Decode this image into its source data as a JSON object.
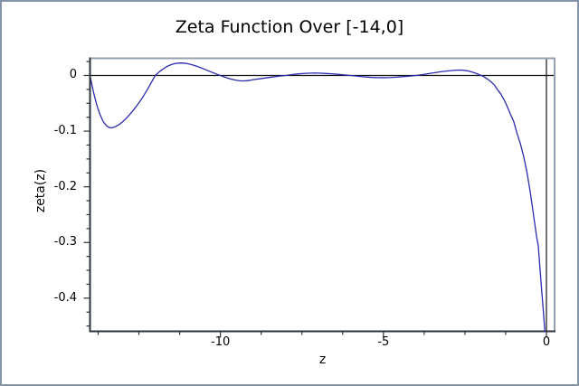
{
  "window": {
    "border_color": "#8495a9",
    "background_color": "#ffffff"
  },
  "chart_data": {
    "type": "line",
    "title": "Zeta Function Over [-14,0]",
    "xlabel": "z",
    "ylabel": "zeta(z)",
    "xlim": [
      -14.0,
      0.25
    ],
    "ylim": [
      -0.4595,
      0.0308
    ],
    "grid": false,
    "legend": "none",
    "axes_through_origin": true,
    "x_ticks": {
      "major": [
        -10,
        -5,
        0
      ],
      "labels": [
        "-10",
        "-5",
        "0"
      ],
      "minor_step": 1.25
    },
    "y_ticks": {
      "major": [
        0,
        -0.1,
        -0.2,
        -0.3,
        -0.4
      ],
      "labels": [
        "0",
        "-0.1",
        "-0.2",
        "-0.3",
        "-0.4"
      ],
      "minor_step": 0.025
    },
    "colors": {
      "curve": "#2b2bae",
      "zero_axis_lines": "#141414",
      "spine_dark": "#2d333d",
      "spine_light": "#94a1b1",
      "text": "#000000"
    },
    "series": [
      {
        "name": "zeta(z)",
        "color": "#2b2bae",
        "points": [
          [
            -14.0,
            0.0
          ],
          [
            -13.95,
            -0.0145
          ],
          [
            -13.9,
            -0.0283
          ],
          [
            -13.8,
            -0.0517
          ],
          [
            -13.7,
            -0.0693
          ],
          [
            -13.6,
            -0.0825
          ],
          [
            -13.5,
            -0.0902
          ],
          [
            -13.4,
            -0.0937
          ],
          [
            -13.35,
            -0.094
          ],
          [
            -13.3,
            -0.0936
          ],
          [
            -13.2,
            -0.0913
          ],
          [
            -13.1,
            -0.0878
          ],
          [
            -13.0,
            -0.0833
          ],
          [
            -12.9,
            -0.0777
          ],
          [
            -12.8,
            -0.0713
          ],
          [
            -12.7,
            -0.0645
          ],
          [
            -12.6,
            -0.057
          ],
          [
            -12.5,
            -0.0491
          ],
          [
            -12.4,
            -0.0408
          ],
          [
            -12.3,
            -0.031
          ],
          [
            -12.2,
            -0.021
          ],
          [
            -12.1,
            -0.0107
          ],
          [
            -12.0,
            0.0
          ],
          [
            -11.9,
            0.0052
          ],
          [
            -11.8,
            0.01
          ],
          [
            -11.7,
            0.014
          ],
          [
            -11.6,
            0.0172
          ],
          [
            -11.5,
            0.0196
          ],
          [
            -11.4,
            0.0213
          ],
          [
            -11.3,
            0.0222
          ],
          [
            -11.2,
            0.0224
          ],
          [
            -11.1,
            0.022
          ],
          [
            -11.0,
            0.0211
          ],
          [
            -10.9,
            0.0197
          ],
          [
            -10.8,
            0.018
          ],
          [
            -10.7,
            0.016
          ],
          [
            -10.6,
            0.0138
          ],
          [
            -10.5,
            0.0114
          ],
          [
            -10.4,
            0.009
          ],
          [
            -10.3,
            0.0066
          ],
          [
            -10.2,
            0.0043
          ],
          [
            -10.1,
            0.0021
          ],
          [
            -10.0,
            0.0
          ],
          [
            -9.9,
            -0.0022
          ],
          [
            -9.8,
            -0.0043
          ],
          [
            -9.7,
            -0.0061
          ],
          [
            -9.6,
            -0.0076
          ],
          [
            -9.5,
            -0.0088
          ],
          [
            -9.4,
            -0.0096
          ],
          [
            -9.3,
            -0.0098
          ],
          [
            -9.2,
            -0.0095
          ],
          [
            -9.1,
            -0.0087
          ],
          [
            -9.0,
            -0.0076
          ],
          [
            -8.8,
            -0.006
          ],
          [
            -8.6,
            -0.0044
          ],
          [
            -8.4,
            -0.0028
          ],
          [
            -8.2,
            -0.0013
          ],
          [
            -8.0,
            0.0
          ],
          [
            -7.8,
            0.0016
          ],
          [
            -7.6,
            0.0029
          ],
          [
            -7.4,
            0.0038
          ],
          [
            -7.2,
            0.0042
          ],
          [
            -7.1,
            0.0043
          ],
          [
            -7.0,
            0.0042
          ],
          [
            -6.8,
            0.0037
          ],
          [
            -6.6,
            0.003
          ],
          [
            -6.4,
            0.0021
          ],
          [
            -6.2,
            0.001
          ],
          [
            -6.0,
            0.0
          ],
          [
            -5.8,
            -0.0013
          ],
          [
            -5.6,
            -0.0025
          ],
          [
            -5.4,
            -0.0034
          ],
          [
            -5.2,
            -0.0039
          ],
          [
            -5.0,
            -0.004
          ],
          [
            -4.8,
            -0.0037
          ],
          [
            -4.6,
            -0.0031
          ],
          [
            -4.4,
            -0.0022
          ],
          [
            -4.2,
            -0.0012
          ],
          [
            -4.0,
            0.0
          ],
          [
            -3.8,
            0.0016
          ],
          [
            -3.6,
            0.0034
          ],
          [
            -3.4,
            0.0053
          ],
          [
            -3.2,
            0.007
          ],
          [
            -3.0,
            0.0083
          ],
          [
            -2.9,
            0.0089
          ],
          [
            -2.8,
            0.0093
          ],
          [
            -2.7,
            0.0097
          ],
          [
            -2.6,
            0.0096
          ],
          [
            -2.5,
            0.009
          ],
          [
            -2.4,
            0.008
          ],
          [
            -2.3,
            0.0064
          ],
          [
            -2.2,
            0.0046
          ],
          [
            -2.1,
            0.0024
          ],
          [
            -2.0,
            0.0
          ],
          [
            -1.9,
            -0.003
          ],
          [
            -1.8,
            -0.0068
          ],
          [
            -1.7,
            -0.0114
          ],
          [
            -1.6,
            -0.017
          ],
          [
            -1.5,
            -0.0255
          ],
          [
            -1.4,
            -0.0332
          ],
          [
            -1.3,
            -0.0435
          ],
          [
            -1.2,
            -0.056
          ],
          [
            -1.1,
            -0.07
          ],
          [
            -1.0,
            -0.0833
          ],
          [
            -0.9,
            -0.1043
          ],
          [
            -0.8,
            -0.1222
          ],
          [
            -0.7,
            -0.145
          ],
          [
            -0.6,
            -0.173
          ],
          [
            -0.5,
            -0.2079
          ],
          [
            -0.4,
            -0.249
          ],
          [
            -0.3,
            -0.29
          ],
          [
            -0.25,
            -0.3058
          ],
          [
            -0.2,
            -0.345
          ],
          [
            -0.15,
            -0.383
          ],
          [
            -0.1,
            -0.419
          ],
          [
            -0.05,
            -0.458
          ],
          [
            0.0,
            -0.5
          ]
        ]
      }
    ]
  }
}
